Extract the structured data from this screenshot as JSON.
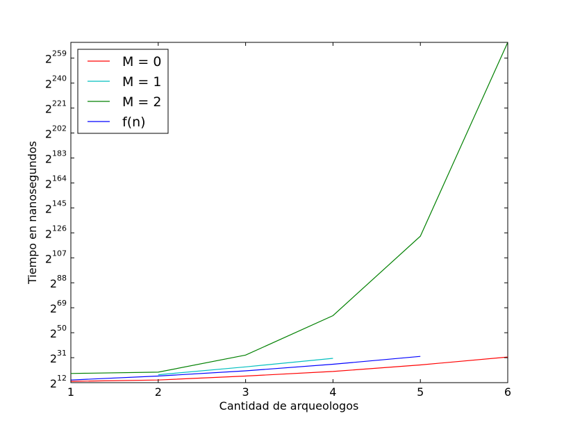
{
  "chart_data": {
    "type": "line",
    "xlabel": "Cantidad de arqueologos",
    "ylabel": "Tiempo en nanosegundos",
    "y_scale": "log2",
    "xlim": [
      1,
      6
    ],
    "ylim_exponent": [
      12,
      271
    ],
    "x_ticks": [
      "1",
      "2",
      "3",
      "4",
      "5",
      "6"
    ],
    "y_ticks": [
      {
        "base": "2",
        "exp": "12"
      },
      {
        "base": "2",
        "exp": "31"
      },
      {
        "base": "2",
        "exp": "50"
      },
      {
        "base": "2",
        "exp": "69"
      },
      {
        "base": "2",
        "exp": "88"
      },
      {
        "base": "2",
        "exp": "107"
      },
      {
        "base": "2",
        "exp": "126"
      },
      {
        "base": "2",
        "exp": "145"
      },
      {
        "base": "2",
        "exp": "164"
      },
      {
        "base": "2",
        "exp": "183"
      },
      {
        "base": "2",
        "exp": "202"
      },
      {
        "base": "2",
        "exp": "221"
      },
      {
        "base": "2",
        "exp": "240"
      },
      {
        "base": "2",
        "exp": "259"
      }
    ],
    "legend_position": "top-left",
    "series": [
      {
        "name": "M = 0",
        "color": "#ff0000",
        "x": [
          1,
          2,
          3,
          4,
          5,
          6
        ],
        "y_exponent": [
          13,
          14,
          17,
          20.5,
          25.5,
          31.5
        ]
      },
      {
        "name": "M = 1",
        "color": "#00bfbf",
        "x": [
          2,
          3,
          4
        ],
        "y_exponent": [
          18,
          24,
          30.5
        ]
      },
      {
        "name": "M = 2",
        "color": "#008000",
        "x": [
          1,
          2,
          3,
          4,
          5,
          6
        ],
        "y_exponent": [
          19,
          20,
          33,
          63,
          123.5,
          271
        ]
      },
      {
        "name": "f(n)",
        "color": "#0000ff",
        "x": [
          1,
          2,
          3,
          4,
          5
        ],
        "y_exponent": [
          14,
          17,
          21,
          26,
          32
        ]
      }
    ]
  }
}
